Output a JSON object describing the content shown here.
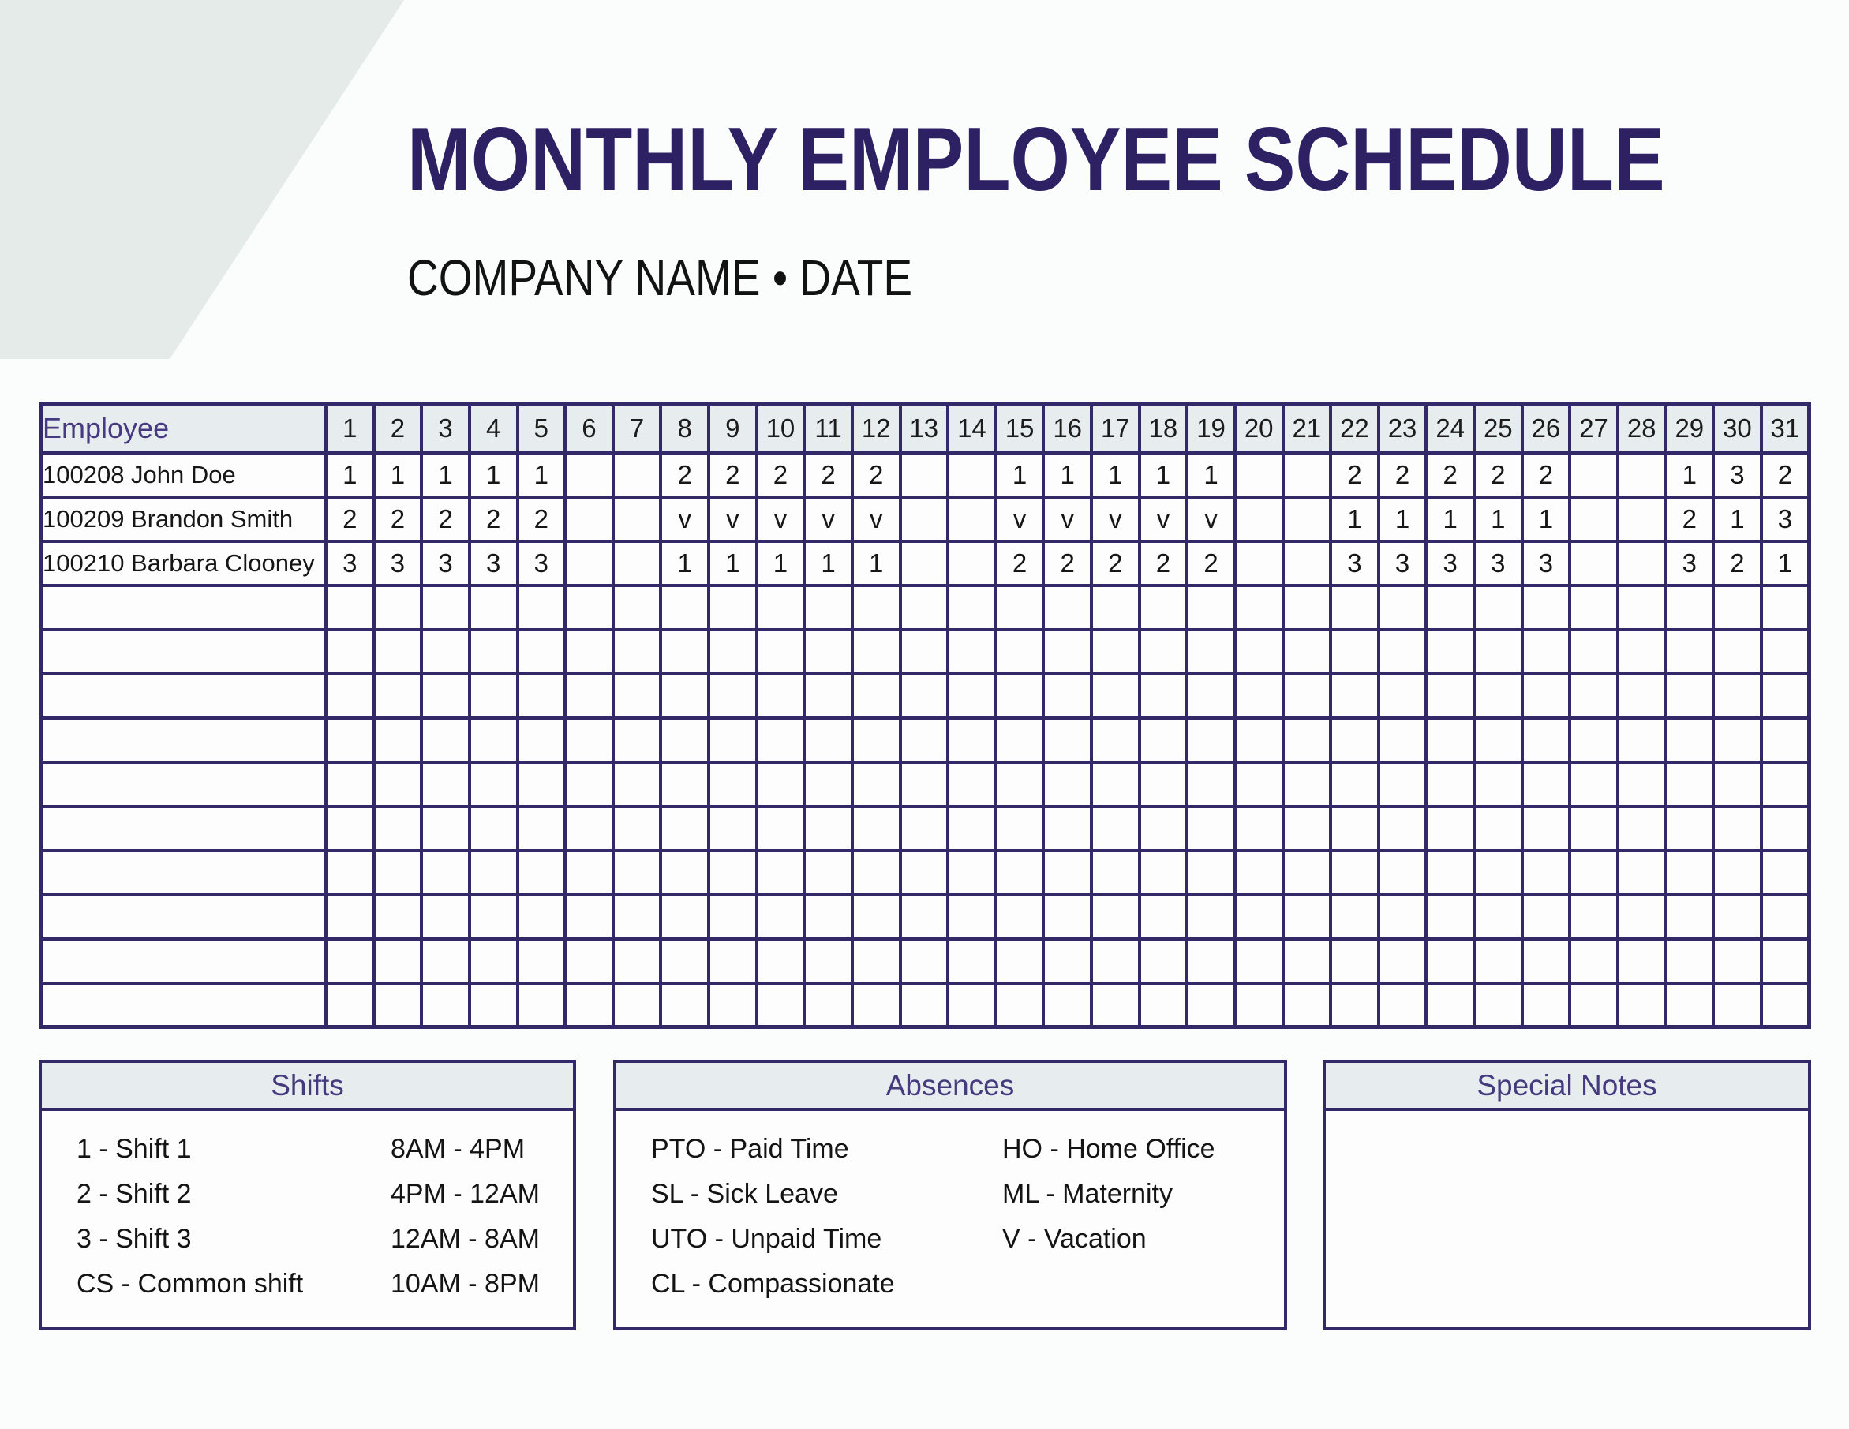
{
  "document": {
    "title": "MONTHLY EMPLOYEE SCHEDULE",
    "subtitle": "COMPANY NAME • DATE"
  },
  "colors": {
    "accent_border_purple": "#332968",
    "title_purple": "#2d2164",
    "header_text_purple": "#483a80",
    "panel_header_bg": "#e7edee",
    "corner_shape_bg": "#e4ebe9",
    "text_black": "#161616"
  },
  "schedule_table": {
    "employee_column_header": "Employee",
    "day_headers": [
      "1",
      "2",
      "3",
      "4",
      "5",
      "6",
      "7",
      "8",
      "9",
      "10",
      "11",
      "12",
      "13",
      "14",
      "15",
      "16",
      "17",
      "18",
      "19",
      "20",
      "21",
      "22",
      "23",
      "24",
      "25",
      "26",
      "27",
      "28",
      "29",
      "30",
      "31"
    ],
    "employees": [
      {
        "name": "100208 John Doe",
        "shifts": [
          "1",
          "1",
          "1",
          "1",
          "1",
          "",
          "",
          "2",
          "2",
          "2",
          "2",
          "2",
          "",
          "",
          "1",
          "1",
          "1",
          "1",
          "1",
          "",
          "",
          "2",
          "2",
          "2",
          "2",
          "2",
          "",
          "",
          "1",
          "3",
          "2"
        ]
      },
      {
        "name": "100209 Brandon Smith",
        "shifts": [
          "2",
          "2",
          "2",
          "2",
          "2",
          "",
          "",
          "v",
          "v",
          "v",
          "v",
          "v",
          "",
          "",
          "v",
          "v",
          "v",
          "v",
          "v",
          "",
          "",
          "1",
          "1",
          "1",
          "1",
          "1",
          "",
          "",
          "2",
          "1",
          "3"
        ]
      },
      {
        "name": "100210 Barbara Clooney",
        "shifts": [
          "3",
          "3",
          "3",
          "3",
          "3",
          "",
          "",
          "1",
          "1",
          "1",
          "1",
          "1",
          "",
          "",
          "2",
          "2",
          "2",
          "2",
          "2",
          "",
          "",
          "3",
          "3",
          "3",
          "3",
          "3",
          "",
          "",
          "3",
          "2",
          "1"
        ]
      }
    ],
    "empty_row_count": 10
  },
  "shifts_panel": {
    "title": "Shifts",
    "entries": [
      {
        "code_label": "1 - Shift 1",
        "time_range": "8AM - 4PM"
      },
      {
        "code_label": "2 - Shift 2",
        "time_range": "4PM - 12AM"
      },
      {
        "code_label": "3 - Shift 3",
        "time_range": "12AM - 8AM"
      },
      {
        "code_label": "CS - Common shift",
        "time_range": "10AM - 8PM"
      }
    ]
  },
  "absences_panel": {
    "title": "Absences",
    "column_1": [
      "PTO - Paid Time",
      "SL - Sick Leave",
      "UTO - Unpaid Time",
      "CL - Compassionate"
    ],
    "column_2": [
      "HO - Home Office",
      "ML - Maternity",
      "V - Vacation"
    ]
  },
  "special_notes_panel": {
    "title": "Special Notes",
    "content": ""
  }
}
